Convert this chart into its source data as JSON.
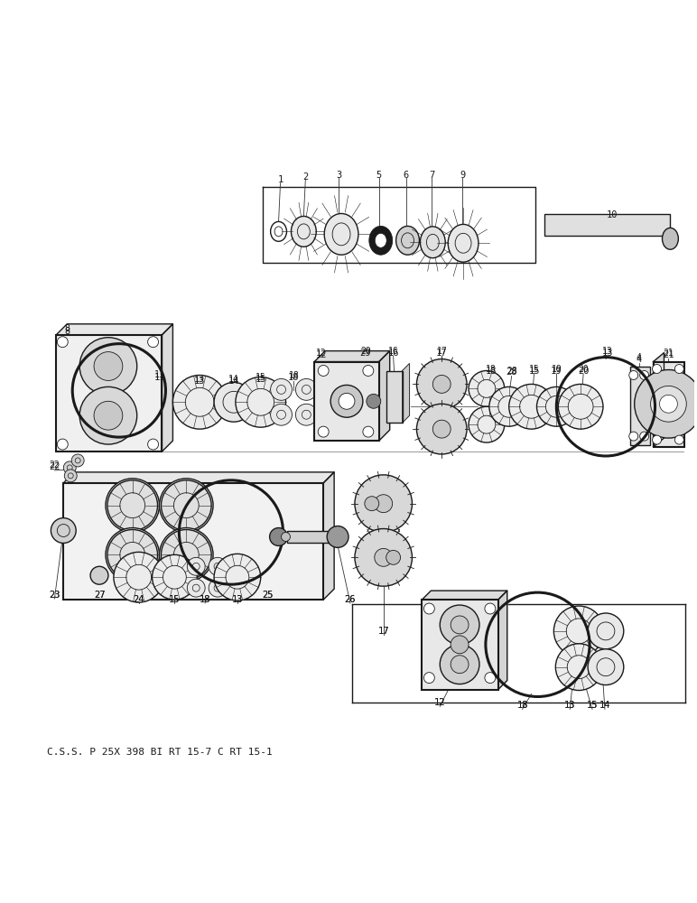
{
  "background_color": "#ffffff",
  "line_color": "#1a1a1a",
  "figsize": [
    7.72,
    10.0
  ],
  "dpi": 100,
  "caption": "C.S.S. P 25X 398 BI RT 15-7 C RT 15-1",
  "caption_fontsize": 8.0
}
